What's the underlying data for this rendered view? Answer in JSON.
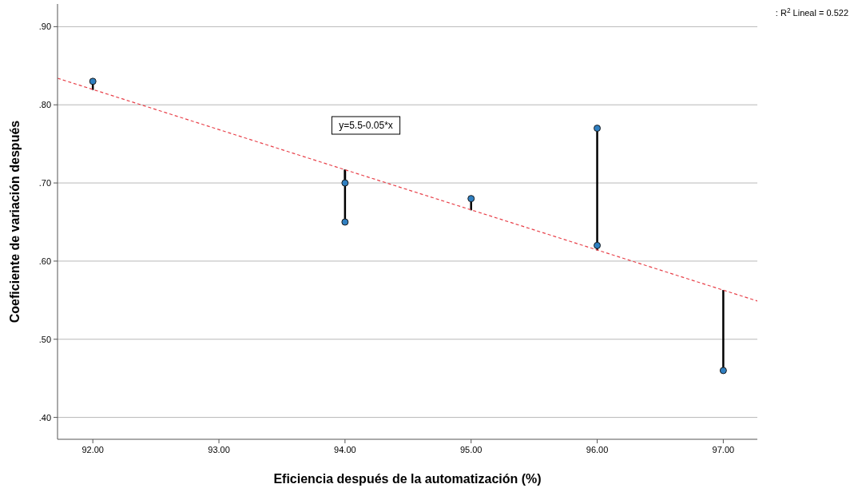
{
  "chart_data": {
    "type": "scatter",
    "xlabel": "Eficiencia después de la automatización (%)",
    "ylabel": "Coeficiente de variación después",
    "xlim": [
      91.72,
      97.27
    ],
    "ylim": [
      0.372,
      0.929
    ],
    "xticks": [
      {
        "value": 92,
        "label": "92.00"
      },
      {
        "value": 93,
        "label": "93.00"
      },
      {
        "value": 94,
        "label": "94.00"
      },
      {
        "value": 95,
        "label": "95.00"
      },
      {
        "value": 96,
        "label": "96.00"
      },
      {
        "value": 97,
        "label": "97.00"
      }
    ],
    "yticks": [
      {
        "value": 0.4,
        "label": ".40"
      },
      {
        "value": 0.5,
        "label": ".50"
      },
      {
        "value": 0.6,
        "label": ".60"
      },
      {
        "value": 0.7,
        "label": ".70"
      },
      {
        "value": 0.8,
        "label": ".80"
      },
      {
        "value": 0.9,
        "label": ".90"
      }
    ],
    "grid": "y",
    "series": [
      {
        "color": "#2f7fc1",
        "marker": "circle",
        "x": [
          92,
          94,
          94,
          95,
          96,
          96,
          97
        ],
        "values": [
          0.83,
          0.7,
          0.65,
          0.68,
          0.77,
          0.62,
          0.46
        ],
        "errors": [
          [
            0.819,
            0.83
          ],
          [
            0.7,
            0.717
          ],
          [
            0.65,
            0.717
          ],
          [
            0.665,
            0.68
          ],
          [
            0.614,
            0.77
          ],
          [
            0.614,
            0.62
          ],
          [
            0.46,
            0.563
          ]
        ]
      },
      {
        "type": "line",
        "color": "#e8414a",
        "line_style": "dashed",
        "marker": "none",
        "x": [
          91.72,
          97.27
        ],
        "values": [
          0.834,
          0.549
        ]
      }
    ],
    "annotations": [
      "y=5.5-0.05*x",
      ": R$^{2}$ Lineal = 0.522"
    ]
  }
}
